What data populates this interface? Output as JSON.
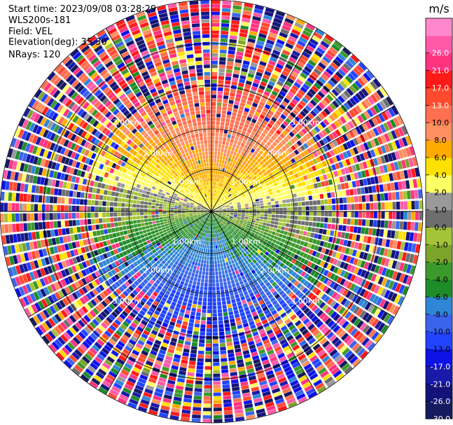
{
  "header": {
    "start_time": "Start time: 2023/09/08 03:28:29",
    "instrument": "WLS200s-181",
    "field": "Field: VEL",
    "elevation": "Elevation(deg): 35.30",
    "nrays": "NRays: 120"
  },
  "colorbar": {
    "unit": "m/s",
    "colors": [
      "#161a5e",
      "#14137a",
      "#1a1aa8",
      "#0d13e6",
      "#2244ff",
      "#3a64ec",
      "#2f86d6",
      "#1e8c28",
      "#3c9a2c",
      "#7da42a",
      "#a3c437",
      "#6e6e6e",
      "#999999",
      "#ffff66",
      "#ffe000",
      "#ffaa00",
      "#ff9060",
      "#ff7050",
      "#ff4a30",
      "#ff1a1a",
      "#ff3380",
      "#ff5aa8",
      "#ff88cc"
    ],
    "ticks": [
      "-30.0",
      "-26.0",
      "-21.0",
      "-17.0",
      "-13.0",
      "-10.0",
      "-8.0",
      "-6.0",
      "-4.0",
      "-2.0",
      "-1.0",
      "0.0",
      "1.0",
      "2.0",
      "4.0",
      "6.0",
      "8.0",
      "10.0",
      "13.0",
      "17.0",
      "21.0",
      "26.0"
    ]
  },
  "chart_data": {
    "type": "heatmap",
    "description_type": "ppi",
    "field": "VEL",
    "unit": "m/s",
    "nrays": 120,
    "range_rings_km": [
      1.0,
      2.0,
      3.0
    ],
    "range_ring_labels": [
      "1.00km",
      "2.00km",
      "3.00km"
    ],
    "azimuth_spokes_deg": [
      0,
      30,
      60,
      90,
      120,
      150,
      180,
      210,
      240,
      270,
      300,
      330
    ],
    "color_scale_min": -30.0,
    "color_scale_max": 30.0,
    "velocity_pattern": {
      "approaching_max_ms": -10,
      "receding_max_ms": 10,
      "receding_sector_azimuth_deg": 0,
      "approaching_sector_azimuth_deg": 180
    }
  }
}
